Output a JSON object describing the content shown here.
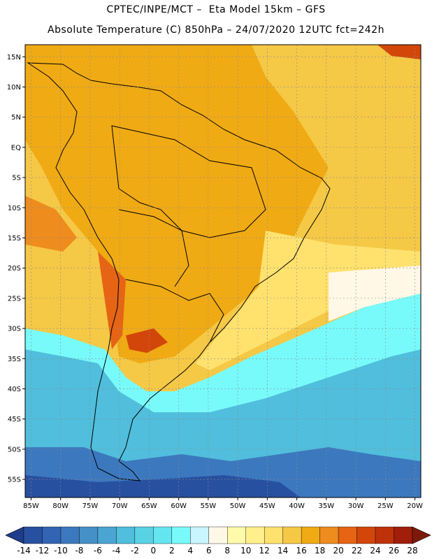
{
  "header": {
    "line1": "CPTEC/INPE/MCT –  Eta Model 15km – GFS",
    "line2": "Absolute Temperature (C) 850hPa – 24/07/2020 12UTC fct=242h"
  },
  "map": {
    "lon_range": [
      -86,
      -19
    ],
    "lat_range": [
      -58,
      17
    ],
    "lat_ticks": [
      "15N",
      "10N",
      "5N",
      "EQ",
      "5S",
      "10S",
      "15S",
      "20S",
      "25S",
      "30S",
      "35S",
      "40S",
      "45S",
      "50S",
      "55S"
    ],
    "lat_values": [
      15,
      10,
      5,
      0,
      -5,
      -10,
      -15,
      -20,
      -25,
      -30,
      -35,
      -40,
      -45,
      -50,
      -55
    ],
    "lon_ticks": [
      "85W",
      "80W",
      "75W",
      "70W",
      "65W",
      "60W",
      "55W",
      "50W",
      "45W",
      "40W",
      "35W",
      "30W",
      "25W",
      "20W"
    ],
    "lon_values": [
      -85,
      -80,
      -75,
      -70,
      -65,
      -60,
      -55,
      -50,
      -45,
      -40,
      -35,
      -30,
      -25,
      -20
    ],
    "grid": true
  },
  "colorbar": {
    "labels": [
      "-14",
      "-12",
      "-10",
      "-8",
      "-6",
      "-4",
      "-2",
      "0",
      "2",
      "4",
      "6",
      "8",
      "10",
      "12",
      "14",
      "16",
      "18",
      "20",
      "22",
      "24",
      "26",
      "28"
    ],
    "colors": [
      "#1e3c8c",
      "#2850a0",
      "#3264b4",
      "#3c78be",
      "#4690c8",
      "#4ba5d2",
      "#50bedc",
      "#5ad2e6",
      "#64e6f0",
      "#78fafa",
      "#c8f5ff",
      "#fff8e6",
      "#fffaaa",
      "#fff08c",
      "#ffe16e",
      "#f5c846",
      "#f0aa14",
      "#ee8c1e",
      "#e66414",
      "#d2460a",
      "#be320a",
      "#a01e0a",
      "#7d190a"
    ]
  }
}
